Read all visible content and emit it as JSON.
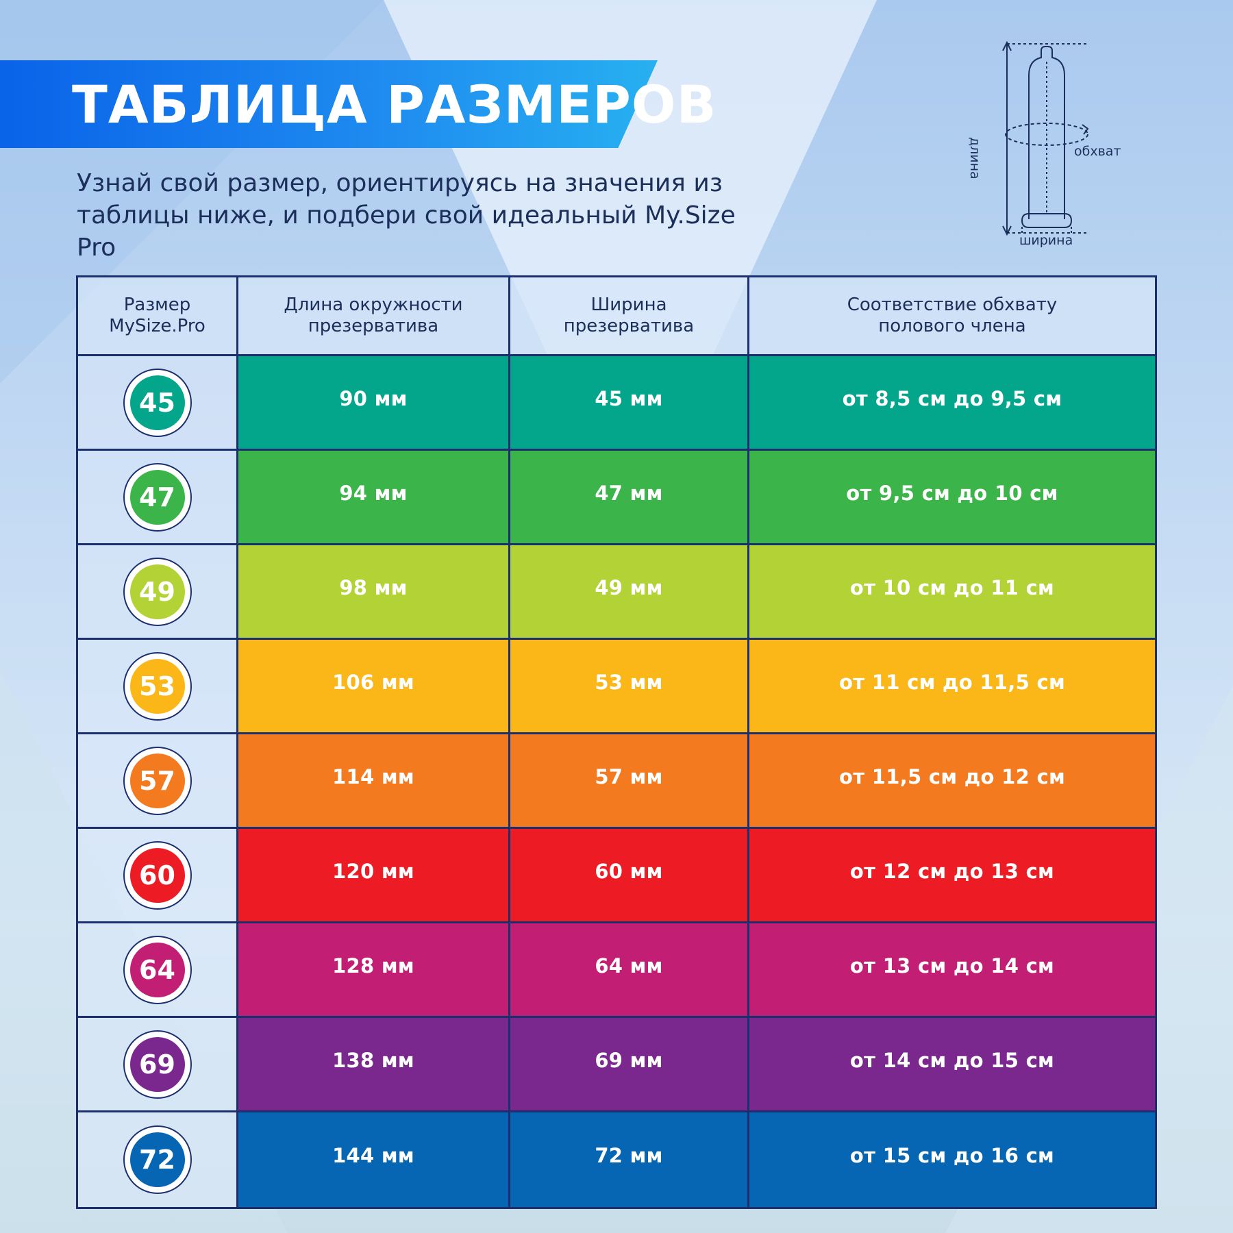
{
  "header": {
    "title": "ТАБЛИЦА РАЗМЕРОВ",
    "subtitle_line1": "Узнай свой размер, ориентируясь на значения из",
    "subtitle_line2": "таблицы ниже, и подбери свой идеальный My.Size Pro"
  },
  "diagram": {
    "label_length": "длина",
    "label_girth": "обхват",
    "label_width": "ширина"
  },
  "table": {
    "headers": [
      {
        "line1": "Размер",
        "line2": "MySize.Pro"
      },
      {
        "line1": "Длина окружности",
        "line2": "презерватива"
      },
      {
        "line1": "Ширина",
        "line2": "презерватива"
      },
      {
        "line1": "Соответствие обхвату",
        "line2": "полового члена"
      }
    ],
    "rows": [
      {
        "size": "45",
        "circumference": "90 мм",
        "width": "45 мм",
        "girth": "от 8,5 см до 9,5 см",
        "color": "#03a68b"
      },
      {
        "size": "47",
        "circumference": "94 мм",
        "width": "47 мм",
        "girth": "от 9,5 см до 10 см",
        "color": "#3bb54a"
      },
      {
        "size": "49",
        "circumference": "98 мм",
        "width": "49 мм",
        "girth": "от 10 см до 11 см",
        "color": "#b2d235"
      },
      {
        "size": "53",
        "circumference": "106 мм",
        "width": "53 мм",
        "girth": "от 11 см до 11,5 см",
        "color": "#fbb718"
      },
      {
        "size": "57",
        "circumference": "114 мм",
        "width": "57 мм",
        "girth": "от 11,5 см до 12 см",
        "color": "#f47a20"
      },
      {
        "size": "60",
        "circumference": "120 мм",
        "width": "60 мм",
        "girth": "от 12 см до 13 см",
        "color": "#ed1c24"
      },
      {
        "size": "64",
        "circumference": "128 мм",
        "width": "64 мм",
        "girth": "от 13 см до 14 см",
        "color": "#c21e73"
      },
      {
        "size": "69",
        "circumference": "138 мм",
        "width": "69 мм",
        "girth": "от 14 см до 15 см",
        "color": "#7b288e"
      },
      {
        "size": "72",
        "circumference": "144 мм",
        "width": "72 мм",
        "girth": "от 15 см до 16 см",
        "color": "#0666b3"
      }
    ]
  }
}
